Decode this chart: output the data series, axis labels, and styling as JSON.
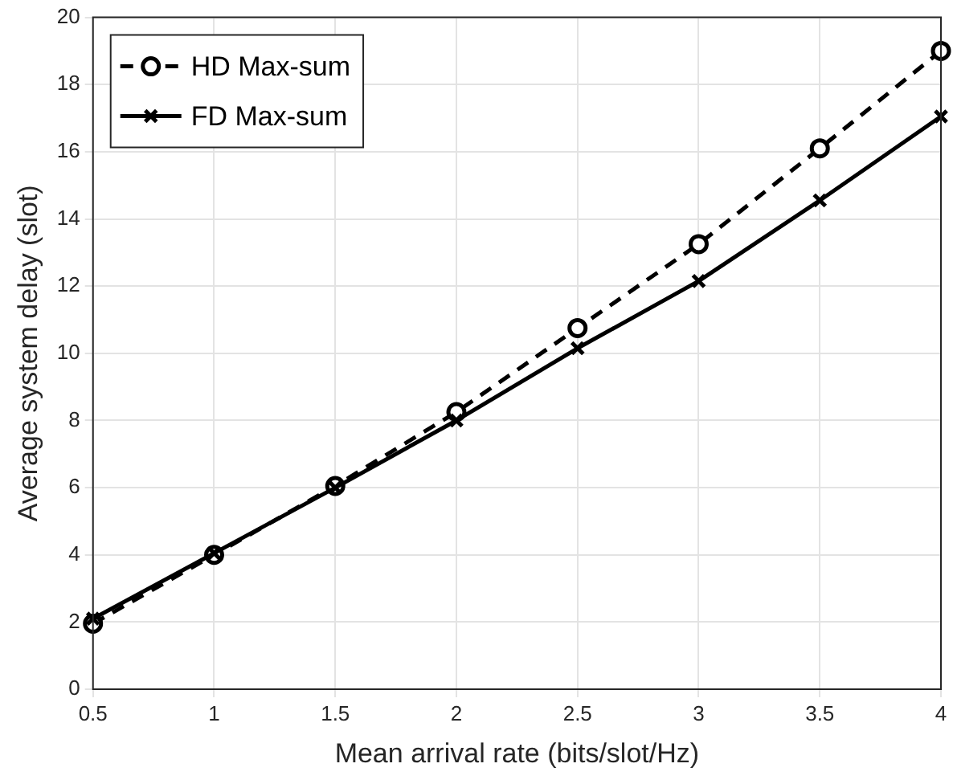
{
  "chart_data": {
    "type": "line",
    "xlabel": "Mean arrival rate (bits/slot/Hz)",
    "ylabel": "Average system delay (slot)",
    "x": [
      0.5,
      1,
      1.5,
      2,
      2.5,
      3,
      3.5,
      4
    ],
    "series": [
      {
        "name": "HD Max-sum",
        "color": "#000000",
        "marker": "circle",
        "line_style": "dashed",
        "values": [
          1.95,
          4.0,
          6.05,
          8.25,
          10.75,
          13.25,
          16.1,
          19.0
        ]
      },
      {
        "name": "FD Max-sum",
        "color": "#000000",
        "marker": "cross",
        "line_style": "solid",
        "values": [
          2.1,
          4.05,
          6.0,
          8.0,
          10.15,
          12.15,
          14.55,
          17.05
        ]
      }
    ],
    "xlim": [
      0.5,
      4
    ],
    "xticks": [
      0.5,
      1,
      1.5,
      2,
      2.5,
      3,
      3.5,
      4
    ],
    "ylim": [
      0,
      20
    ],
    "yticks": [
      0,
      2,
      4,
      6,
      8,
      10,
      12,
      14,
      16,
      18,
      20
    ],
    "grid": true,
    "legend": "top left"
  }
}
